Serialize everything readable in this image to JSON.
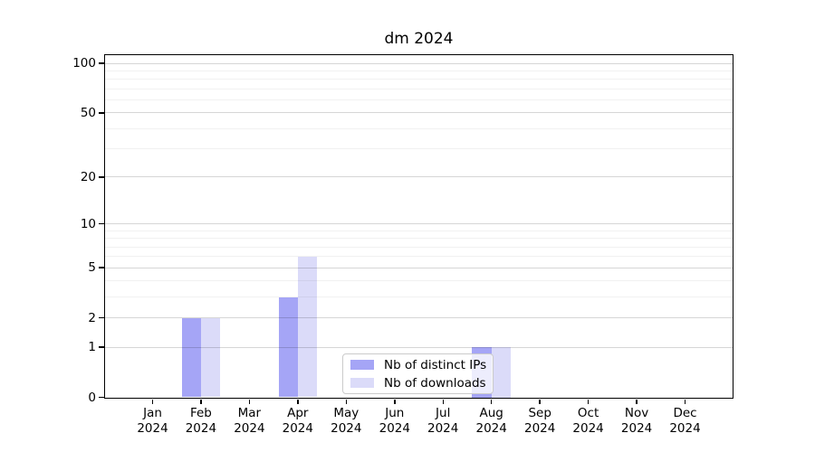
{
  "chart_data": {
    "type": "bar",
    "title": "dm 2024",
    "categories": [
      "Jan",
      "Feb",
      "Mar",
      "Apr",
      "May",
      "Jun",
      "Jul",
      "Aug",
      "Sep",
      "Oct",
      "Nov",
      "Dec"
    ],
    "x_year": "2024",
    "series": [
      {
        "name": "Nb of distinct IPs",
        "color": "#a5a5f6",
        "values": [
          0,
          2,
          0,
          3,
          0,
          0,
          0,
          1,
          0,
          0,
          0,
          0
        ]
      },
      {
        "name": "Nb of downloads",
        "color": "#dbdbf9",
        "values": [
          0,
          2,
          0,
          6,
          0,
          0,
          0,
          1,
          0,
          0,
          0,
          0
        ]
      }
    ],
    "yscale": "log1p",
    "ylim": [
      0,
      113
    ],
    "yticks": [
      0,
      1,
      2,
      5,
      10,
      20,
      50,
      100
    ],
    "minor_gridlines": [
      3,
      4,
      6,
      7,
      8,
      9,
      30,
      40,
      60,
      70,
      80,
      90
    ],
    "grid": true,
    "legend_position": "lower center"
  }
}
